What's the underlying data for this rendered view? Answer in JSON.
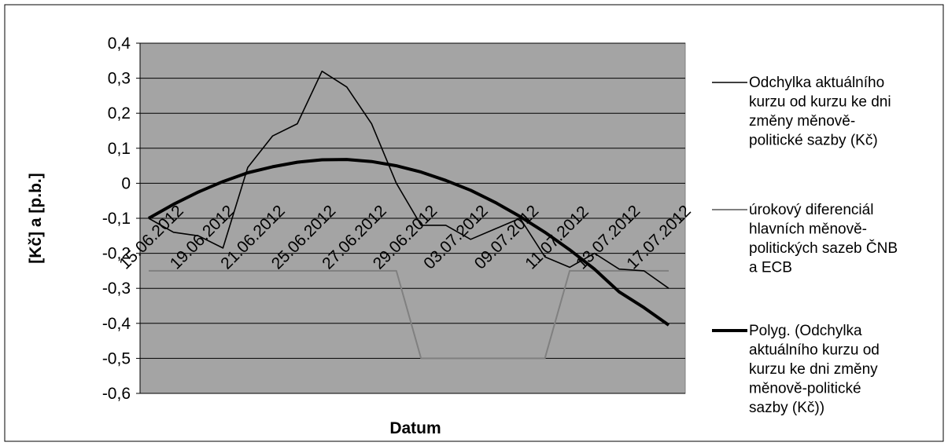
{
  "chart_data": {
    "type": "line",
    "title": "",
    "xlabel": "Datum",
    "ylabel": "[Kč] a [p.b.]",
    "ylim": [
      -0.6,
      0.4
    ],
    "yticks": [
      0.4,
      0.3,
      0.2,
      0.1,
      0,
      -0.1,
      -0.2,
      -0.3,
      -0.4,
      -0.5,
      -0.6
    ],
    "ytick_labels": [
      "0,4",
      "0,3",
      "0,2",
      "0,1",
      "0",
      "-0,1",
      "-0,2",
      "-0,3",
      "-0,4",
      "-0,5",
      "-0,6"
    ],
    "grid": true,
    "legend_position": "right",
    "x_tick_labels": [
      "15.06.2012",
      "19.06.2012",
      "21.06.2012",
      "25.06.2012",
      "27.06.2012",
      "29.06.2012",
      "03.07.2012",
      "09.07.2012",
      "11.07.2012",
      "13.07.2012",
      "17.07.2012"
    ],
    "series": [
      {
        "name": "Odchylka aktuálního kurzu od kurzu ke dni změny měnově-politické sazby (Kč)",
        "color": "#000000",
        "values": [
          -0.1,
          -0.14,
          -0.15,
          -0.185,
          0.045,
          0.135,
          0.17,
          0.32,
          0.275,
          0.17,
          0.0,
          -0.12,
          -0.12,
          -0.16,
          -0.13,
          -0.1,
          -0.21,
          -0.24,
          -0.2,
          -0.245,
          -0.25,
          -0.3
        ]
      },
      {
        "name": "úrokový diferenciál hlavních měnově-politických sazeb ČNB a ECB",
        "color": "#808080",
        "values": [
          -0.25,
          -0.25,
          -0.25,
          -0.25,
          -0.25,
          -0.25,
          -0.25,
          -0.25,
          -0.25,
          -0.25,
          -0.25,
          -0.5,
          -0.5,
          -0.5,
          -0.5,
          -0.5,
          -0.5,
          -0.25,
          -0.25,
          -0.25,
          -0.25,
          -0.25
        ]
      },
      {
        "name": "Polyg. (Odchylka aktuálního kurzu od kurzu ke dni změny měnově-politické sazby (Kč))",
        "color": "#000000",
        "values": [
          -0.1,
          -0.06,
          -0.025,
          0.005,
          0.03,
          0.047,
          0.06,
          0.067,
          0.068,
          0.062,
          0.05,
          0.032,
          0.008,
          -0.02,
          -0.055,
          -0.095,
          -0.14,
          -0.19,
          -0.245,
          -0.31,
          -0.355,
          -0.405
        ]
      }
    ]
  }
}
